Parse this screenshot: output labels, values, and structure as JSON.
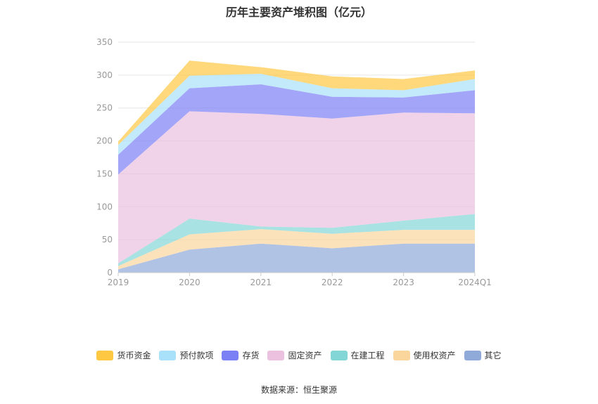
{
  "chart_data": {
    "type": "area",
    "title": "历年主要资产堆积图（亿元）",
    "x": [
      "2019",
      "2020",
      "2021",
      "2022",
      "2023",
      "2024Q1"
    ],
    "ylim": [
      0,
      350
    ],
    "yticks": [
      0,
      50,
      100,
      150,
      200,
      250,
      300,
      350
    ],
    "grid": true,
    "legend_position": "bottom",
    "stacked": true,
    "series": [
      {
        "name": "其它",
        "color": "#8fa9d9",
        "values": [
          5,
          35,
          44,
          37,
          44,
          44
        ]
      },
      {
        "name": "使用权资产",
        "color": "#fbd69c",
        "values": [
          5,
          23,
          22,
          22,
          21,
          21
        ]
      },
      {
        "name": "在建工程",
        "color": "#83d6d6",
        "values": [
          4,
          24,
          4,
          9,
          14,
          24
        ]
      },
      {
        "name": "固定资产",
        "color": "#ebc1df",
        "values": [
          135,
          163,
          171,
          166,
          164,
          153
        ]
      },
      {
        "name": "存货",
        "color": "#7c80f5",
        "values": [
          30,
          35,
          45,
          33,
          23,
          35
        ]
      },
      {
        "name": "预付款项",
        "color": "#a9e1fa",
        "values": [
          15,
          19,
          16,
          13,
          11,
          17
        ]
      },
      {
        "name": "货币资金",
        "color": "#fec842",
        "values": [
          5,
          23,
          10,
          18,
          17,
          13
        ]
      }
    ],
    "legend_order": [
      "货币资金",
      "预付款项",
      "存货",
      "固定资产",
      "在建工程",
      "使用权资产",
      "其它"
    ]
  },
  "source_text": "数据来源：恒生聚源"
}
